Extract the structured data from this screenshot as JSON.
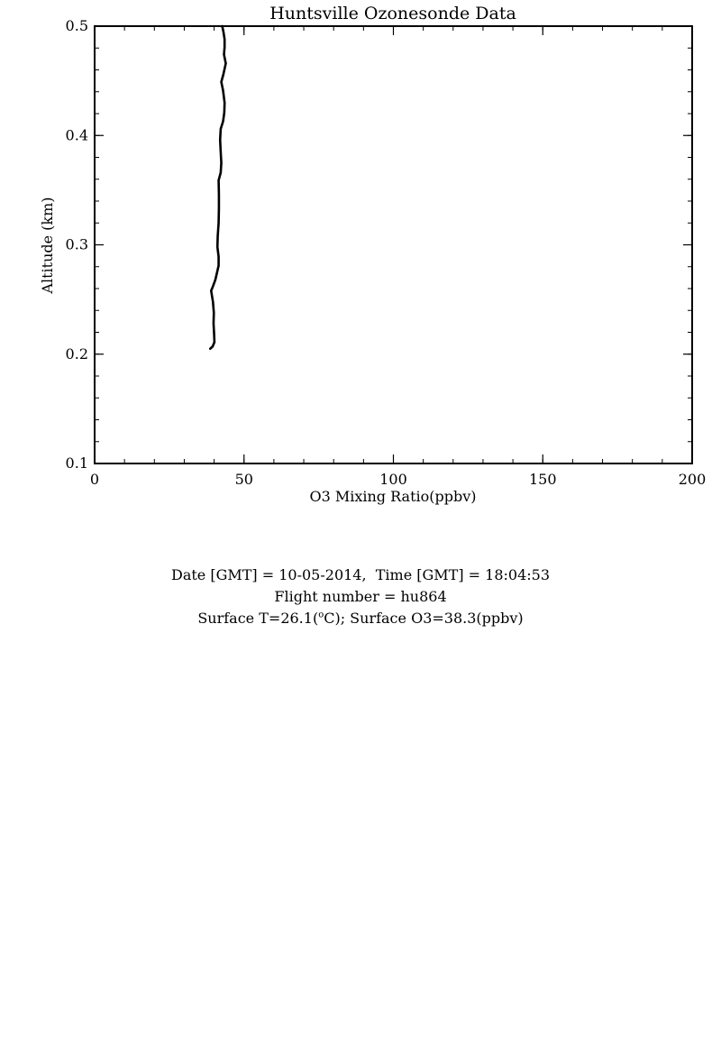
{
  "chart_data": {
    "type": "line",
    "title": "Huntsville Ozonesonde Data",
    "xlabel": "O3 Mixing Ratio(ppbv)",
    "ylabel": "Altitude (km)",
    "xlim": [
      0,
      200
    ],
    "ylim": [
      0.1,
      0.5
    ],
    "x_ticks": [
      "0",
      "50",
      "100",
      "150",
      "200"
    ],
    "y_ticks": [
      "0.1",
      "0.2",
      "0.3",
      "0.4",
      "0.5"
    ],
    "grid": false,
    "line_color": "#000000",
    "series": [
      {
        "points": [
          [
            38.7,
            0.205
          ],
          [
            39.5,
            0.207
          ],
          [
            40.1,
            0.211
          ],
          [
            40.0,
            0.218
          ],
          [
            39.8,
            0.228
          ],
          [
            39.9,
            0.238
          ],
          [
            39.6,
            0.248
          ],
          [
            39.0,
            0.258
          ],
          [
            39.6,
            0.262
          ],
          [
            40.4,
            0.268
          ],
          [
            41.0,
            0.275
          ],
          [
            41.5,
            0.281
          ],
          [
            41.5,
            0.289
          ],
          [
            41.1,
            0.298
          ],
          [
            41.2,
            0.308
          ],
          [
            41.5,
            0.32
          ],
          [
            41.6,
            0.333
          ],
          [
            41.6,
            0.346
          ],
          [
            41.5,
            0.359
          ],
          [
            42.2,
            0.366
          ],
          [
            42.4,
            0.375
          ],
          [
            42.2,
            0.385
          ],
          [
            42.0,
            0.396
          ],
          [
            42.2,
            0.406
          ],
          [
            43.0,
            0.413
          ],
          [
            43.4,
            0.421
          ],
          [
            43.5,
            0.43
          ],
          [
            43.0,
            0.441
          ],
          [
            42.4,
            0.449
          ],
          [
            43.1,
            0.456
          ],
          [
            43.9,
            0.466
          ],
          [
            43.3,
            0.474
          ],
          [
            43.5,
            0.481
          ],
          [
            43.5,
            0.488
          ],
          [
            43.1,
            0.495
          ],
          [
            42.7,
            0.5
          ]
        ]
      }
    ]
  },
  "info": {
    "date_line": "Date [GMT] = 10-05-2014,  Time [GMT] = 18:04:53",
    "flight_line": "Flight number = hu864",
    "surface_prefix": "Surface T=26.1(",
    "surface_sup": "o",
    "surface_suffix": "C); Surface O3=38.3(ppbv)"
  }
}
